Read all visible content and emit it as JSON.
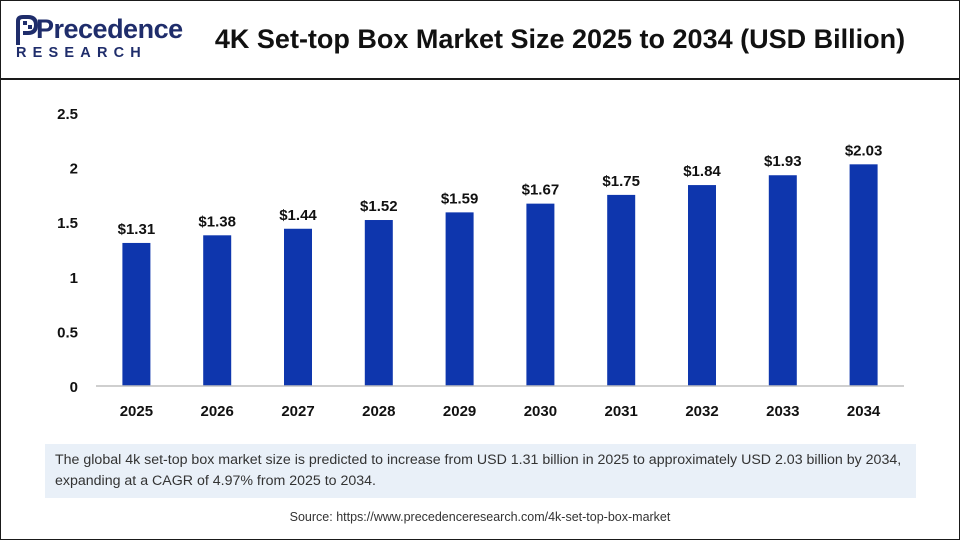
{
  "logo": {
    "brand": "Precedence",
    "sub": "RESEARCH"
  },
  "title": "4K Set-top Box Market Size 2025 to 2034 (USD Billion)",
  "caption": "The global 4k set-top box market  size is predicted to increase from USD 1.31 billion in 2025 to approximately USD 2.03 billion by 2034, expanding at a CAGR of 4.97% from 2025 to 2034.",
  "source": "Source: https://www.precedenceresearch.com/4k-set-top-box-market",
  "colors": {
    "bar": "#0e36ad",
    "brand": "#1f2d6b",
    "caption_bg": "#e9f0f8"
  },
  "chart_data": {
    "type": "bar",
    "categories": [
      "2025",
      "2026",
      "2027",
      "2028",
      "2029",
      "2030",
      "2031",
      "2032",
      "2033",
      "2034"
    ],
    "values": [
      1.31,
      1.38,
      1.44,
      1.52,
      1.59,
      1.67,
      1.75,
      1.84,
      1.93,
      2.03
    ],
    "data_labels": [
      "$1.31",
      "$1.38",
      "$1.44",
      "$1.52",
      "$1.59",
      "$1.67",
      "$1.75",
      "$1.84",
      "$1.93",
      "$2.03"
    ],
    "yticks": [
      "0",
      "0.5",
      "1",
      "1.5",
      "2",
      "2.5"
    ],
    "ylim": [
      0,
      2.5
    ],
    "grid": false,
    "legend": "none"
  }
}
